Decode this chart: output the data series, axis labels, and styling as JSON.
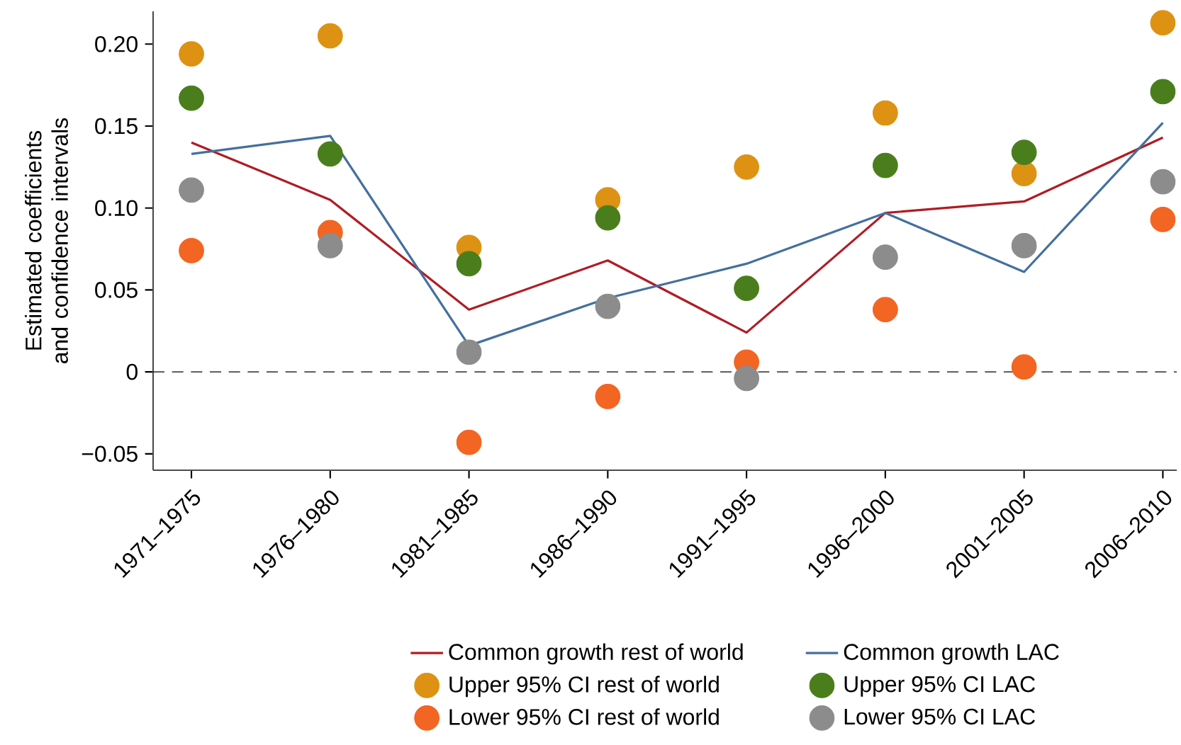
{
  "chart_data": {
    "type": "scatter",
    "ylabel": "Estimated coefficients and confidence intervals",
    "categories": [
      "1971–1975",
      "1976–1980",
      "1981–1985",
      "1986–1990",
      "1991–1995",
      "1996–2000",
      "2001–2005",
      "2006–2010"
    ],
    "series": [
      {
        "name": "Common growth rest of world",
        "type": "line",
        "marker": "none",
        "color": "#b01c24",
        "values": [
          0.14,
          0.105,
          0.038,
          0.068,
          0.024,
          0.097,
          0.104,
          0.143
        ]
      },
      {
        "name": "Common growth LAC",
        "type": "line",
        "marker": "none",
        "color": "#44709e",
        "values": [
          0.133,
          0.144,
          0.016,
          0.045,
          0.066,
          0.097,
          0.061,
          0.152
        ]
      },
      {
        "name": "Upper 95% CI rest of world",
        "marker": "circle",
        "color": "#dd9213",
        "values": [
          0.194,
          0.205,
          0.076,
          0.105,
          0.125,
          0.158,
          0.121,
          0.213
        ]
      },
      {
        "name": "Upper 95% CI LAC",
        "marker": "circle",
        "color": "#4a7e1c",
        "values": [
          0.167,
          0.133,
          0.066,
          0.094,
          0.051,
          0.126,
          0.134,
          0.171
        ]
      },
      {
        "name": "Lower 95% CI rest of world",
        "marker": "circle",
        "color": "#f26522",
        "values": [
          0.074,
          0.085,
          -0.043,
          -0.015,
          0.006,
          0.038,
          0.003,
          0.093
        ]
      },
      {
        "name": "Lower 95% CI LAC",
        "marker": "circle",
        "color": "#8c8c8c",
        "values": [
          0.111,
          0.077,
          0.012,
          0.04,
          -0.004,
          0.07,
          0.077,
          0.116
        ]
      }
    ],
    "ylim": [
      -0.06,
      0.22
    ],
    "yticks": [
      {
        "value": -0.05,
        "label": "−0.05"
      },
      0,
      {
        "value": 0.05,
        "label": "0.05"
      },
      {
        "value": 0.1,
        "label": "0.10"
      },
      0.15,
      {
        "value": 0.2,
        "label": "0.20"
      }
    ],
    "ref_lines": [
      {
        "axis": "y",
        "value": 0,
        "color": "#000000",
        "line_style": "dashed"
      }
    ],
    "grid": false,
    "legend": "bottom"
  }
}
